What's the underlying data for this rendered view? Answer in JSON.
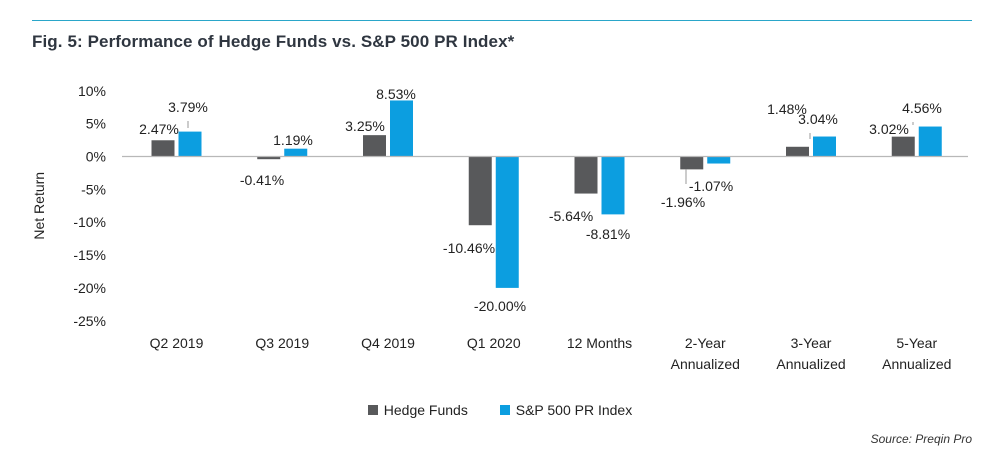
{
  "figure": {
    "title": "Fig. 5: Performance of Hedge Funds vs. S&P 500 PR Index*",
    "source": "Source: Preqin Pro"
  },
  "chart_data": {
    "type": "bar",
    "categories": [
      [
        "Q2 2019"
      ],
      [
        "Q3 2019"
      ],
      [
        "Q4 2019"
      ],
      [
        "Q1 2020"
      ],
      [
        "12 Months"
      ],
      [
        "2-Year",
        "Annualized"
      ],
      [
        "3-Year",
        "Annualized"
      ],
      [
        "5-Year",
        "Annualized"
      ]
    ],
    "series": [
      {
        "name": "Hedge Funds",
        "color": "#58595b",
        "values": [
          2.47,
          -0.41,
          3.25,
          -10.46,
          -5.64,
          -1.96,
          1.48,
          3.02
        ],
        "labels": [
          "2.47%",
          "-0.41%",
          "3.25%",
          "-10.46%",
          "-5.64%",
          "-1.96%",
          "1.48%",
          "3.02%"
        ]
      },
      {
        "name": "S&P 500 PR Index",
        "color": "#0c9ee0",
        "values": [
          3.79,
          1.19,
          8.53,
          -20.0,
          -8.81,
          -1.07,
          3.04,
          4.56
        ],
        "labels": [
          "3.79%",
          "1.19%",
          "8.53%",
          "-20.00%",
          "-8.81%",
          "-1.07%",
          "3.04%",
          "4.56%"
        ]
      }
    ],
    "ylabel": "Net Return",
    "ylim": [
      -25,
      10
    ],
    "yticks": [
      10,
      5,
      0,
      -5,
      -10,
      -15,
      -20,
      -25
    ],
    "ytick_labels": [
      "10%",
      "5%",
      "0%",
      "-5%",
      "-10%",
      "-15%",
      "-20%",
      "-25%"
    ],
    "legend": "bottom",
    "grid": false
  }
}
